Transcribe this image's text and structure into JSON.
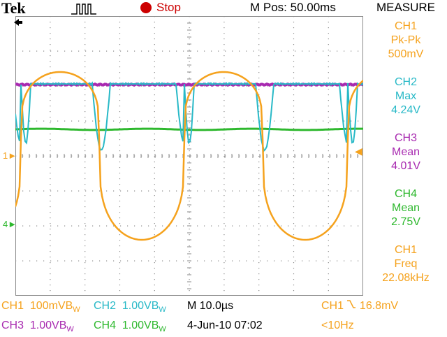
{
  "header": {
    "brand": "Tek",
    "state": "Stop",
    "position_label": "M Pos: 50.00ms",
    "panel_title": "MEASURE"
  },
  "colors": {
    "ch1": "#f5a21d",
    "ch2": "#28b9c7",
    "ch3": "#a82ab0",
    "ch4": "#2eb82e",
    "grid": "#8a8a8a",
    "stop": "#cc0000"
  },
  "measurements": [
    {
      "channel": "CH1",
      "type": "Pk-Pk",
      "value": "500mV",
      "color": "#f5a21d"
    },
    {
      "channel": "CH2",
      "type": "Max",
      "value": "4.24V",
      "color": "#28b9c7"
    },
    {
      "channel": "CH3",
      "type": "Mean",
      "value": "4.01V",
      "color": "#a82ab0"
    },
    {
      "channel": "CH4",
      "type": "Mean",
      "value": "2.75V",
      "color": "#2eb82e"
    },
    {
      "channel": "CH1",
      "type": "Freq",
      "value": "22.08kHz",
      "color": "#f5a21d"
    }
  ],
  "footer": {
    "ch1_label": "CH1",
    "ch1_scale": "100mVB",
    "ch2_label": "CH2",
    "ch2_scale": "1.00VB",
    "ch3_label": "CH3",
    "ch3_scale": "1.00VB",
    "ch4_label": "CH4",
    "ch4_scale": "1.00VB",
    "bw_suffix": "W",
    "timebase": "M 10.0µs",
    "date": "4-Jun-10 07:02",
    "trigger_source": "CH1",
    "trigger_level": "16.8mV",
    "freq_readout": "<10Hz"
  },
  "markers": {
    "ch1": "1",
    "ch4": "4"
  }
}
